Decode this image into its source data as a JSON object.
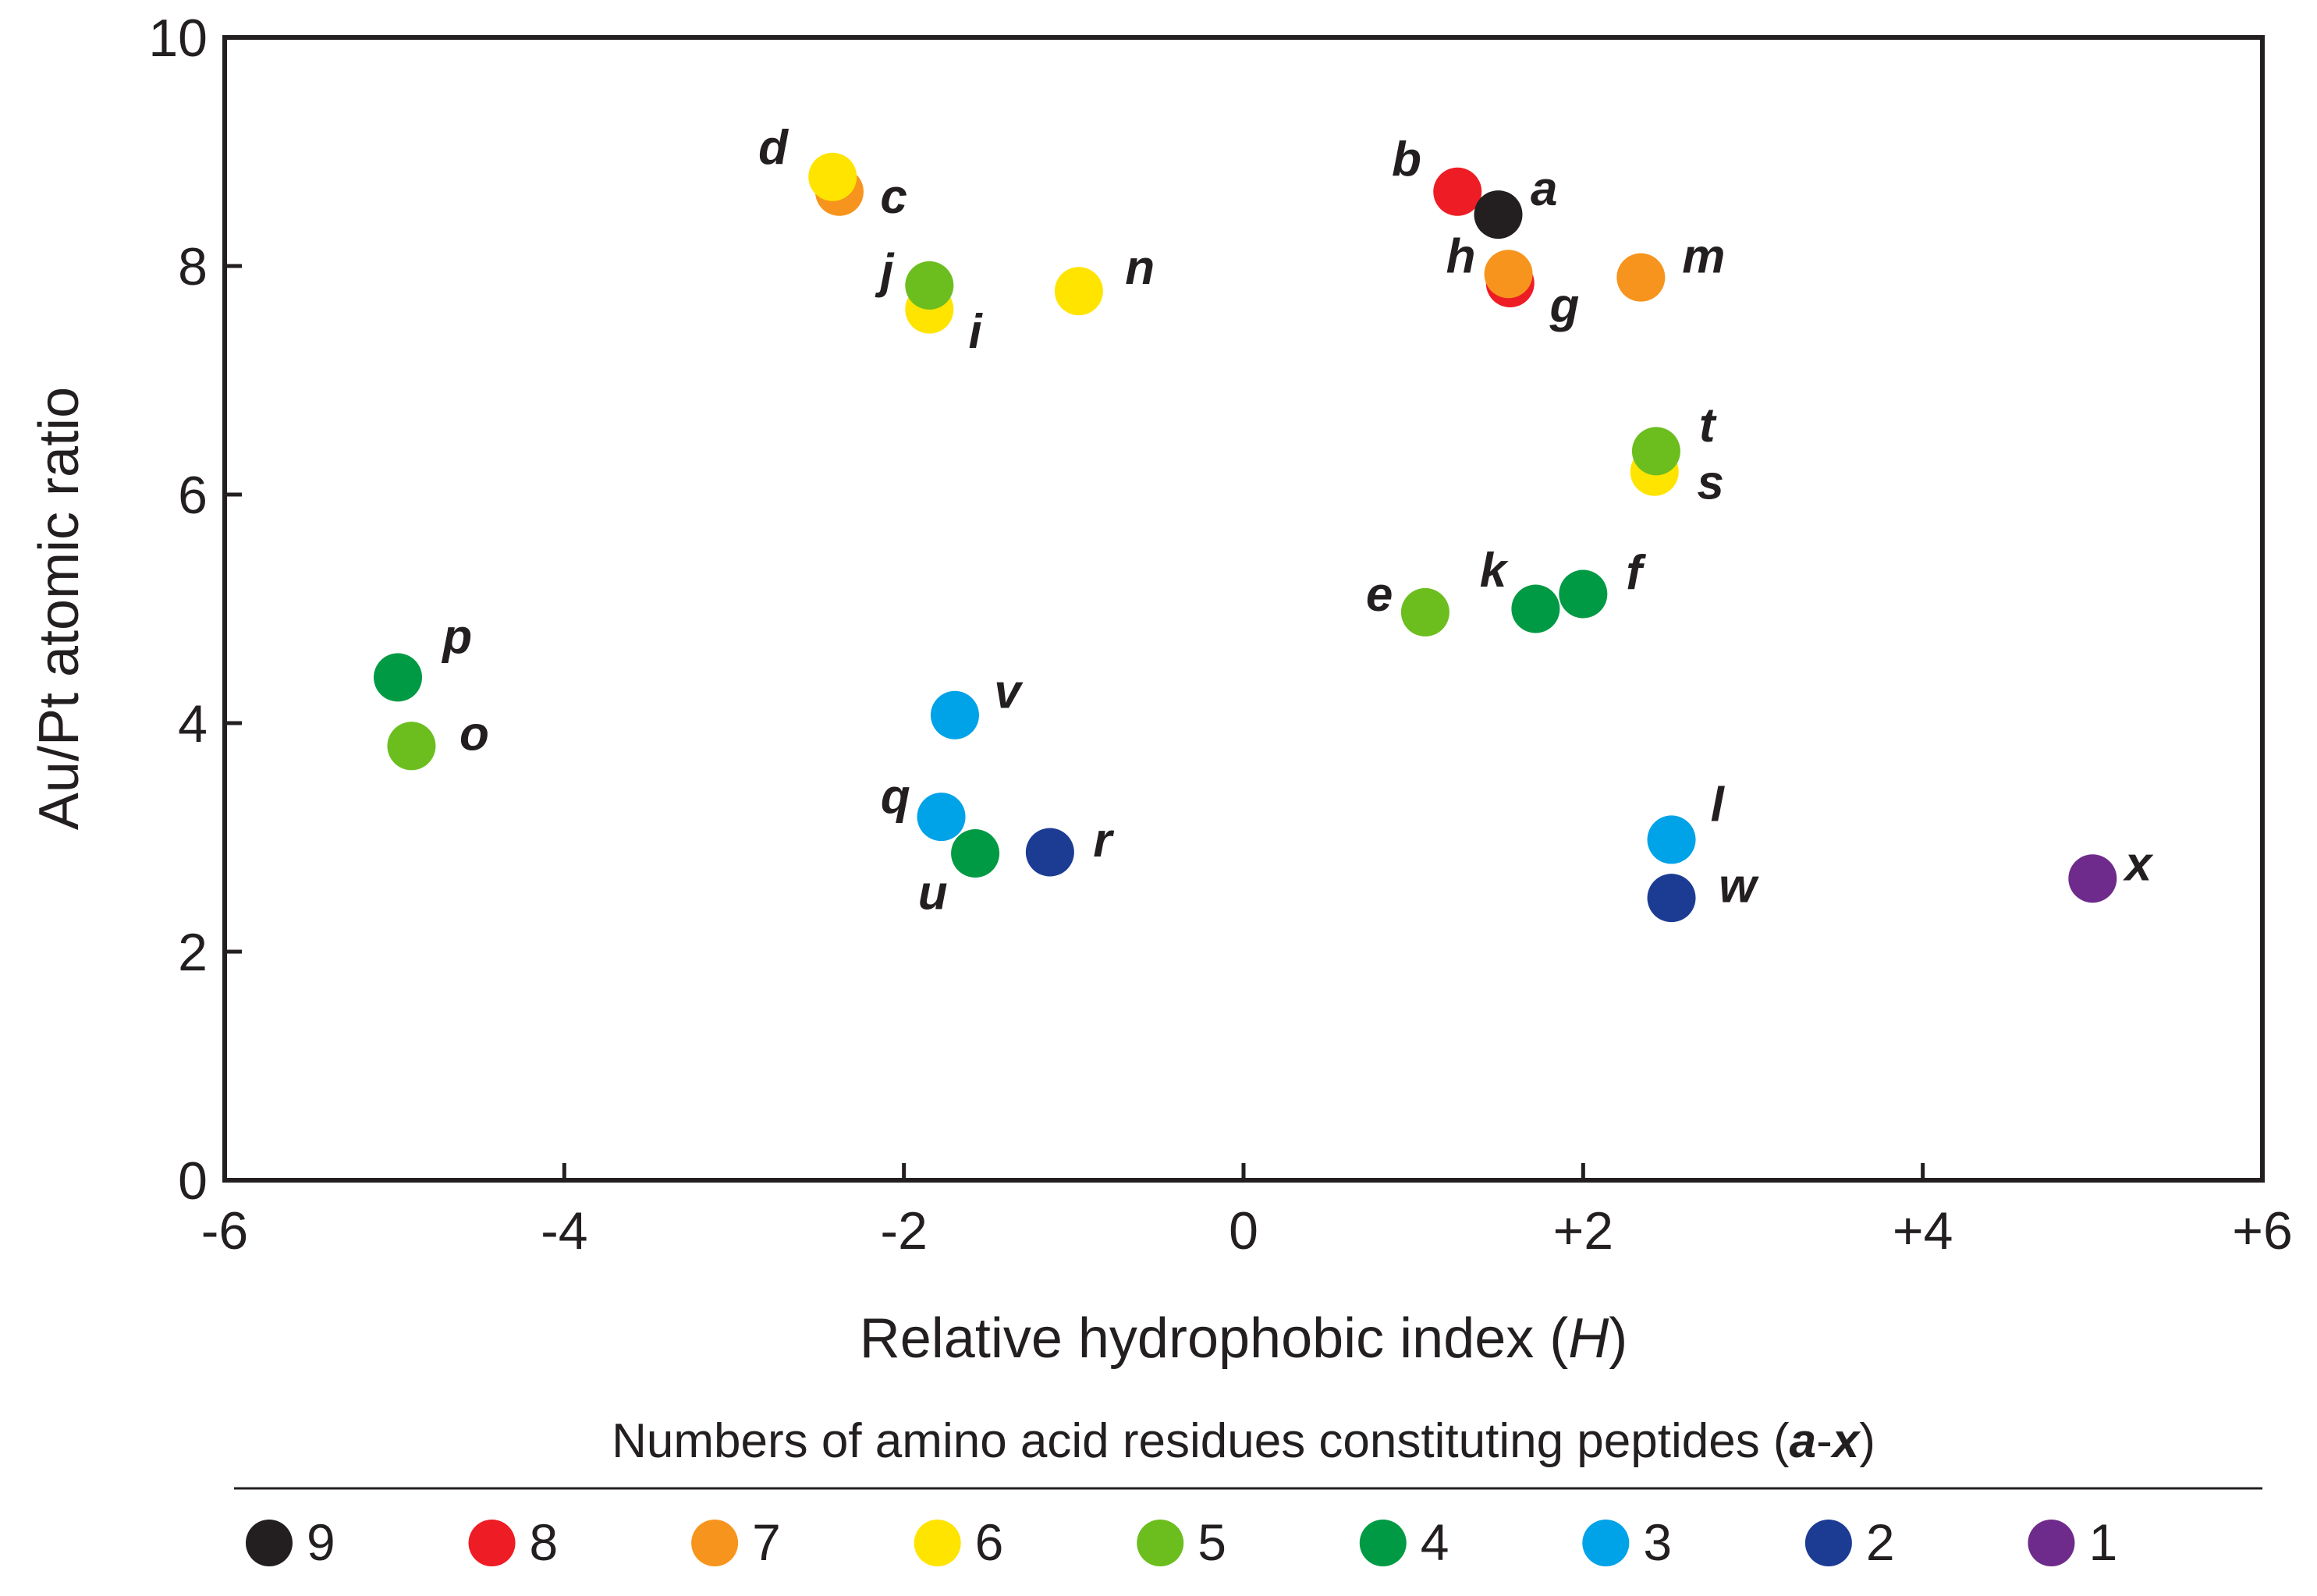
{
  "chart_data": {
    "type": "scatter",
    "title": "",
    "xlabel": "Relative hydrophobic index",
    "xlabel_var": "H",
    "ylabel": "Au/Pt atomic ratio",
    "xlim": [
      -6,
      6
    ],
    "ylim": [
      0,
      10
    ],
    "grid": false,
    "x_ticks": [
      -6,
      -4,
      -2,
      0,
      2,
      4,
      6
    ],
    "x_tick_labels": [
      "-6",
      "-4",
      "-2",
      "0",
      "+2",
      "+4",
      "+6"
    ],
    "y_ticks": [
      0,
      2,
      4,
      6,
      8,
      10
    ],
    "y_tick_labels": [
      "0",
      "2",
      "4",
      "6",
      "8",
      "10"
    ],
    "legend": {
      "title_prefix": "Numbers of amino acid residues constituting peptides (",
      "title_var_a": "a",
      "title_dash": "-",
      "title_var_b": "x",
      "title_suffix": ")",
      "placement": "bottom",
      "entries": [
        {
          "label": "9",
          "residues": 9,
          "color": "#231f20"
        },
        {
          "label": "8",
          "residues": 8,
          "color": "#ee1c25"
        },
        {
          "label": "7",
          "residues": 7,
          "color": "#f7941d"
        },
        {
          "label": "6",
          "residues": 6,
          "color": "#ffe400"
        },
        {
          "label": "5",
          "residues": 5,
          "color": "#6cbe1f"
        },
        {
          "label": "4",
          "residues": 4,
          "color": "#009a44"
        },
        {
          "label": "3",
          "residues": 3,
          "color": "#00a2e8"
        },
        {
          "label": "2",
          "residues": 2,
          "color": "#1c3c94"
        },
        {
          "label": "1",
          "residues": 1,
          "color": "#6e2b8b"
        }
      ]
    },
    "points": [
      {
        "label": "c",
        "x": -2.38,
        "y": 8.65,
        "residues": 7,
        "label_dx": 0.32,
        "label_dy": -0.05
      },
      {
        "label": "d",
        "x": -2.42,
        "y": 8.78,
        "residues": 6,
        "label_dx": -0.35,
        "label_dy": 0.25
      },
      {
        "label": "i",
        "x": -1.85,
        "y": 7.62,
        "residues": 6,
        "label_dx": 0.27,
        "label_dy": -0.2
      },
      {
        "label": "j",
        "x": -1.85,
        "y": 7.83,
        "residues": 5,
        "label_dx": -0.25,
        "label_dy": 0.12
      },
      {
        "label": "n",
        "x": -0.97,
        "y": 7.78,
        "residues": 6,
        "label_dx": 0.36,
        "label_dy": 0.2
      },
      {
        "label": "b",
        "x": 1.26,
        "y": 8.65,
        "residues": 8,
        "label_dx": -0.3,
        "label_dy": 0.28
      },
      {
        "label": "a",
        "x": 1.5,
        "y": 8.45,
        "residues": 9,
        "label_dx": 0.27,
        "label_dy": 0.22
      },
      {
        "label": "g",
        "x": 1.57,
        "y": 7.85,
        "residues": 8,
        "label_dx": 0.32,
        "label_dy": -0.2
      },
      {
        "label": "h",
        "x": 1.56,
        "y": 7.93,
        "residues": 7,
        "label_dx": -0.28,
        "label_dy": 0.15
      },
      {
        "label": "m",
        "x": 2.34,
        "y": 7.9,
        "residues": 7,
        "label_dx": 0.37,
        "label_dy": 0.18
      },
      {
        "label": "s",
        "x": 2.42,
        "y": 6.2,
        "residues": 6,
        "label_dx": 0.33,
        "label_dy": -0.1
      },
      {
        "label": "t",
        "x": 2.43,
        "y": 6.38,
        "residues": 5,
        "label_dx": 0.3,
        "label_dy": 0.22
      },
      {
        "label": "e",
        "x": 1.07,
        "y": 4.97,
        "residues": 5,
        "label_dx": -0.27,
        "label_dy": 0.15
      },
      {
        "label": "k",
        "x": 1.72,
        "y": 5.0,
        "residues": 4,
        "label_dx": -0.25,
        "label_dy": 0.33
      },
      {
        "label": "f",
        "x": 2.0,
        "y": 5.13,
        "residues": 4,
        "label_dx": 0.3,
        "label_dy": 0.18
      },
      {
        "label": "p",
        "x": -4.98,
        "y": 4.4,
        "residues": 4,
        "label_dx": 0.35,
        "label_dy": 0.35
      },
      {
        "label": "o",
        "x": -4.9,
        "y": 3.8,
        "residues": 5,
        "label_dx": 0.37,
        "label_dy": 0.1
      },
      {
        "label": "v",
        "x": -1.7,
        "y": 4.07,
        "residues": 3,
        "label_dx": 0.31,
        "label_dy": 0.2
      },
      {
        "label": "q",
        "x": -1.78,
        "y": 3.18,
        "residues": 3,
        "label_dx": -0.27,
        "label_dy": 0.17
      },
      {
        "label": "u",
        "x": -1.58,
        "y": 2.86,
        "residues": 4,
        "label_dx": -0.25,
        "label_dy": -0.35
      },
      {
        "label": "r",
        "x": -1.14,
        "y": 2.87,
        "residues": 2,
        "label_dx": 0.31,
        "label_dy": 0.1
      },
      {
        "label": "l",
        "x": 2.52,
        "y": 2.98,
        "residues": 3,
        "label_dx": 0.27,
        "label_dy": 0.3
      },
      {
        "label": "w",
        "x": 2.52,
        "y": 2.47,
        "residues": 2,
        "label_dx": 0.39,
        "label_dy": 0.1
      },
      {
        "label": "x",
        "x": 5.0,
        "y": 2.64,
        "residues": 1,
        "label_dx": 0.27,
        "label_dy": 0.12
      }
    ]
  }
}
